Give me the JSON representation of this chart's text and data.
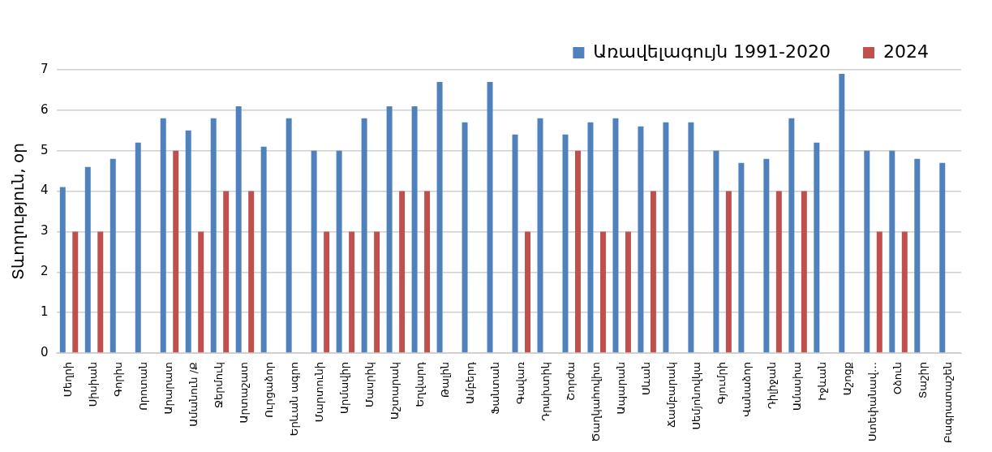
{
  "chart_data": {
    "type": "bar",
    "ylabel": "Տևողություն, օր",
    "categories": [
      "Մեղրի",
      "Սիսիան",
      "Գորիս",
      "Որոտան",
      "Արարատ",
      "Ամանուն /Ք",
      "Ջերմուկ",
      "Արտաշատ",
      "Ուրցաձոր",
      "Երևան ագրո",
      "Մարտունի",
      "Արմավիր",
      "Մասրիկ",
      "Աշտարակ",
      "Եղվարդ",
      "Թալին",
      "Ամբերդ",
      "Ֆանտան",
      "Գավառ",
      "Դրախտիկ",
      "Շորժա",
      "Ծաղկահովիտ",
      "Ապարան",
      "Սևան",
      "Ճամբարակ",
      "Սեմյոնովկա",
      "Գյումրի",
      "Վանաձոր",
      "Դիլիջան",
      "Ամասիա",
      "Իջևան",
      "Աշոցք",
      "Ստեփանավ…",
      "Օձուն",
      "Տաշիր",
      "Բագրատաշեն"
    ],
    "series": [
      {
        "name": "Առավելագույն 1991-2020",
        "color": "#4f81bd",
        "values": [
          4.1,
          4.6,
          4.8,
          5.2,
          5.8,
          5.5,
          5.8,
          6.1,
          5.1,
          5.8,
          5.0,
          5.0,
          5.8,
          6.1,
          6.1,
          6.7,
          5.7,
          6.7,
          5.4,
          5.8,
          5.4,
          5.7,
          5.8,
          5.6,
          5.7,
          5.7,
          5.0,
          4.7,
          4.8,
          5.8,
          5.2,
          6.9,
          5.0,
          5.0,
          4.8,
          4.7
        ]
      },
      {
        "name": "2024",
        "color": "#c0504d",
        "values": [
          3,
          3,
          null,
          null,
          5,
          3,
          4,
          4,
          null,
          null,
          3,
          3,
          3,
          4,
          4,
          null,
          null,
          null,
          3,
          null,
          5,
          3,
          3,
          4,
          null,
          null,
          4,
          null,
          4,
          4,
          null,
          null,
          3,
          3,
          null,
          null
        ]
      }
    ],
    "ylim": [
      0,
      7
    ],
    "yticks": [
      0,
      1,
      2,
      3,
      4,
      5,
      6,
      7
    ],
    "grid": "y",
    "legend": "top right"
  }
}
